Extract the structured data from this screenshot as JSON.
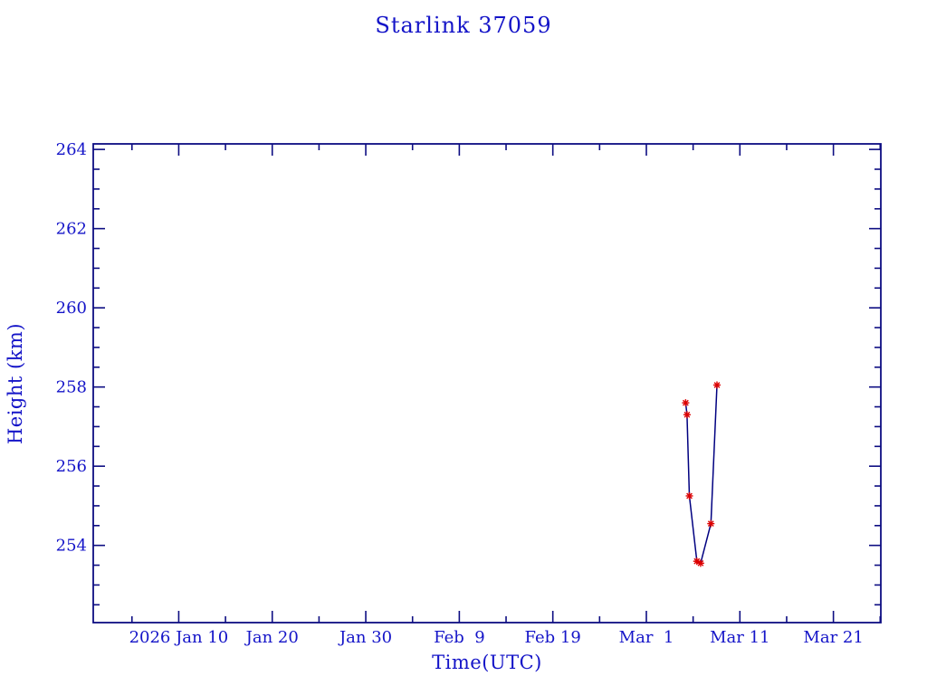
{
  "page": {
    "background": "#ffffff"
  },
  "chart_data": {
    "type": "line",
    "title": "Starlink 37059",
    "xlabel": "Time(UTC)",
    "ylabel": "Height (km)",
    "text_color": "#1414c8",
    "axis_color": "#0d0d82",
    "grid": false,
    "legend": null,
    "x_unit": "day number, day 10 = 2026 Jan 10 00:00 UTC",
    "xlim": [
      0.86,
      85.07
    ],
    "ylim": [
      252.05,
      264.14
    ],
    "x_major_ticks": [
      {
        "day": 10,
        "label": "2026 Jan 10"
      },
      {
        "day": 20,
        "label": "Jan 20"
      },
      {
        "day": 30,
        "label": "Jan 30"
      },
      {
        "day": 40,
        "label": "Feb  9"
      },
      {
        "day": 50,
        "label": "Feb 19"
      },
      {
        "day": 60,
        "label": "Mar  1"
      },
      {
        "day": 70,
        "label": "Mar 11"
      },
      {
        "day": 80,
        "label": "Mar 21"
      }
    ],
    "x_minor_step": 5,
    "y_major_ticks": [
      254,
      256,
      258,
      260,
      262,
      264
    ],
    "y_minor_step": 0.5,
    "tick_style": {
      "major_len": 13,
      "minor_len": 7,
      "direction": "inward",
      "mirrored_on_all_sides": true
    },
    "series": [
      {
        "name": "height",
        "line_color": "#000080",
        "marker": "asterisk",
        "marker_color": "#dd0000",
        "points": [
          {
            "day": 64.2,
            "date": "2026 Mar 5.2",
            "height": 257.6
          },
          {
            "day": 64.35,
            "date": "2026 Mar 5.35",
            "height": 257.3
          },
          {
            "day": 64.6,
            "date": "2026 Mar 5.6",
            "height": 255.25
          },
          {
            "day": 65.4,
            "date": "2026 Mar 6.4",
            "height": 253.6
          },
          {
            "day": 65.8,
            "date": "2026 Mar 6.8",
            "height": 253.55
          },
          {
            "day": 66.9,
            "date": "2026 Mar 7.9",
            "height": 254.55
          },
          {
            "day": 67.55,
            "date": "2026 Mar 8.55",
            "height": 258.05
          }
        ]
      }
    ]
  }
}
